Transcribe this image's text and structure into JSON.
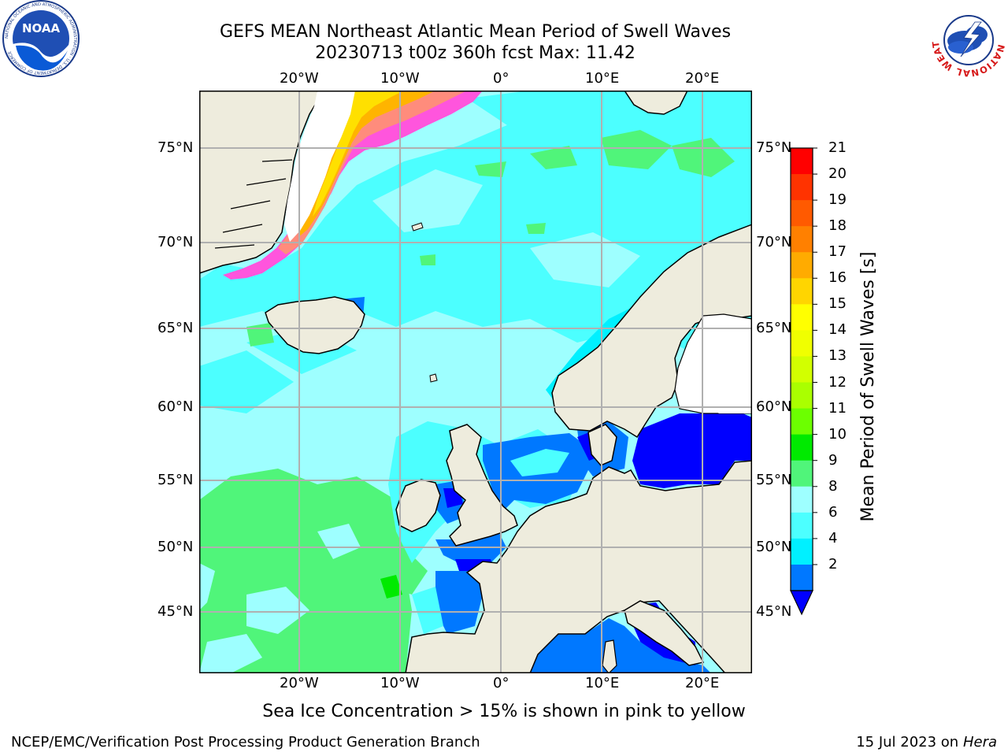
{
  "header": {
    "title_line1": "GEFS MEAN Northeast Atlantic Mean Period of Swell Waves",
    "title_line2": "20230713 t00z 360h fcst   Max: 11.42"
  },
  "logos": {
    "left": {
      "name": "noaa-logo",
      "text": "NOAA",
      "ring_text": "NATIONAL OCEANIC AND ATMOSPHERIC ADMINISTRATION · U.S. DEPARTMENT OF COMMERCE"
    },
    "right": {
      "name": "nws-logo",
      "ring_text": "NATIONAL WEATHER SERVICE"
    }
  },
  "map": {
    "lon_labels": [
      "20°W",
      "10°W",
      "0°",
      "10°E",
      "20°E"
    ],
    "lat_labels": [
      "75°N",
      "70°N",
      "65°N",
      "60°N",
      "55°N",
      "50°N",
      "45°N"
    ],
    "colors": {
      "land": "#eeecdd",
      "ice_sheet": "#ffffff",
      "grid": "#b0b0b0",
      "ocean_default": "#9effff"
    }
  },
  "colorbar": {
    "label": "Mean Period of Swell Waves [s]",
    "ticks": [
      "21",
      "20",
      "19",
      "18",
      "17",
      "16",
      "15",
      "14",
      "13",
      "12",
      "11",
      "10",
      "9",
      "8",
      "6",
      "4",
      "2"
    ],
    "colors_top_to_bottom": [
      "#ff0000",
      "#ff3300",
      "#ff5a00",
      "#ff8000",
      "#ffab00",
      "#ffd500",
      "#ffff00",
      "#f0ff00",
      "#d2ff00",
      "#aaff00",
      "#6cff00",
      "#00ea00",
      "#50f57a",
      "#9effff",
      "#4cffff",
      "#00f0ff",
      "#0078ff"
    ],
    "extend_color": "#0000ff"
  },
  "notes": {
    "ice_note": "Sea Ice Concentration > 15% is shown in pink to yellow"
  },
  "footer": {
    "left": "NCEP/EMC/Verification Post Processing Product Generation Branch",
    "right_date": "15 Jul 2023 on ",
    "right_host": "Hera"
  }
}
